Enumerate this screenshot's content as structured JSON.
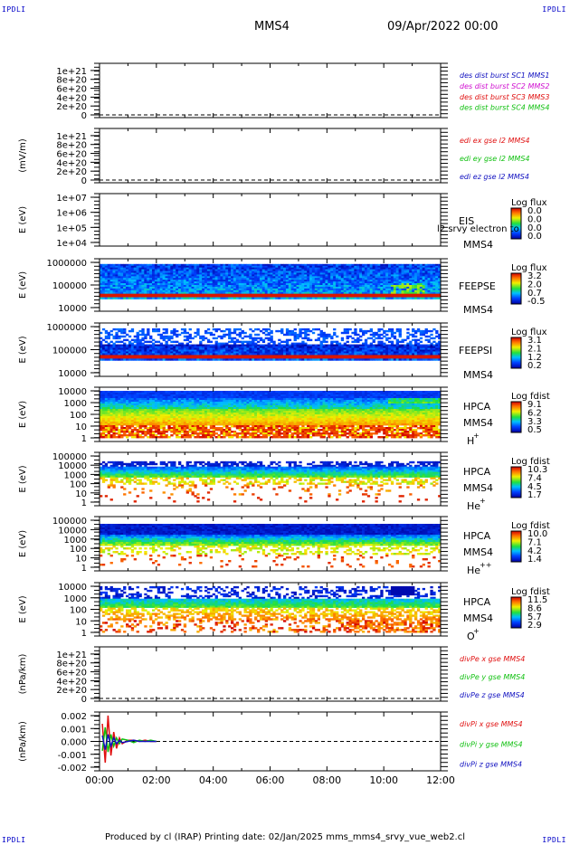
{
  "header": {
    "spacecraft": "MMS4",
    "date": "09/Apr/2022 00:00",
    "corner_label": "IPDLI"
  },
  "footer": {
    "text": "Produced by cl (IRAP)   Printing date: 02/Jan/2025   mms_mms4_srvy_vue_web2.cl"
  },
  "colors": {
    "red": "#e01010",
    "green": "#10c010",
    "blue": "#1010c0",
    "magenta": "#d010d0",
    "dashed": "#000000"
  },
  "time_axis": {
    "ticks": [
      "00:00",
      "02:00",
      "04:00",
      "06:00",
      "08:00",
      "10:00",
      "12:00"
    ],
    "range_hours": [
      0,
      12
    ]
  },
  "chart_data": [
    {
      "type": "line",
      "panel": "des-dist-burst",
      "ylabel": "",
      "ytick_labels": [
        "1e+21",
        "8e+20",
        "6e+20",
        "4e+20",
        "2e+20",
        "0"
      ],
      "ylim": [
        0,
        1.1e+21
      ],
      "legend": [
        {
          "text": "des dist burst SC1 MMS1",
          "color": "#1010c0"
        },
        {
          "text": "des dist burst SC2 MMS2",
          "color": "#d010d0"
        },
        {
          "text": "des dist burst SC3 MMS3",
          "color": "#e01010"
        },
        {
          "text": "des dist burst SC4 MMS4",
          "color": "#10c010"
        }
      ],
      "series": []
    },
    {
      "type": "line",
      "panel": "edi-e",
      "ylabel": "(mV/m)",
      "ytick_labels": [
        "1e+21",
        "8e+20",
        "6e+20",
        "4e+20",
        "2e+20",
        "0"
      ],
      "ylim": [
        0,
        1.1e+21
      ],
      "legend": [
        {
          "text": "edi ex gse l2 MMS4",
          "color": "#e01010"
        },
        {
          "text": "edi ey gse l2 MMS4",
          "color": "#10c010"
        },
        {
          "text": "edi ez gse l2 MMS4",
          "color": "#1010c0"
        }
      ],
      "series": []
    },
    {
      "type": "heatmap",
      "panel": "eis",
      "ylabel": "E (eV)",
      "ytick_labels": [
        "1e+07",
        "1e+06",
        "1e+05",
        "1e+04"
      ],
      "ylog": [
        4,
        7
      ],
      "labels": [
        "EIS",
        "MMS4"
      ],
      "overlay_text": "l2 srvy electron to",
      "colorbar_title": "Log flux",
      "colorbar_ticks": [
        "0.0",
        "0.0",
        "0.0",
        "0.0"
      ],
      "empty": true
    },
    {
      "type": "heatmap",
      "panel": "feepse",
      "ylabel": "E (eV)",
      "ytick_labels": [
        "1000000",
        "100000",
        "10000"
      ],
      "ylog": [
        4,
        6
      ],
      "labels": [
        "FEEPSE",
        "MMS4"
      ],
      "colorbar_title": "Log flux",
      "colorbar_ticks": [
        "3.2",
        "2.0",
        "0.7",
        "-0.5"
      ]
    },
    {
      "type": "heatmap",
      "panel": "feepsi",
      "ylabel": "E (eV)",
      "ytick_labels": [
        "1000000",
        "100000",
        "10000"
      ],
      "ylog": [
        4,
        6
      ],
      "labels": [
        "FEEPSI",
        "MMS4"
      ],
      "colorbar_title": "Log flux",
      "colorbar_ticks": [
        "3.1",
        "2.1",
        "1.2",
        "0.2"
      ]
    },
    {
      "type": "heatmap",
      "panel": "hpca-h",
      "ylabel": "E (eV)",
      "ytick_labels": [
        "10000",
        "1000",
        "100",
        "10",
        "1"
      ],
      "ylog": [
        0,
        4.3
      ],
      "labels": [
        "HPCA",
        "MMS4",
        "H",
        "+"
      ],
      "colorbar_title": "Log fdist",
      "colorbar_ticks": [
        "9.1",
        "6.2",
        "3.3",
        "0.5"
      ]
    },
    {
      "type": "heatmap",
      "panel": "hpca-he",
      "ylabel": "E (eV)",
      "ytick_labels": [
        "100000",
        "10000",
        "1000",
        "100",
        "10",
        "1"
      ],
      "ylog": [
        0,
        5
      ],
      "labels": [
        "HPCA",
        "MMS4",
        "He",
        "+"
      ],
      "colorbar_title": "Log fdist",
      "colorbar_ticks": [
        "10.3",
        "7.4",
        "4.5",
        "1.7"
      ]
    },
    {
      "type": "heatmap",
      "panel": "hpca-he2",
      "ylabel": "E (eV)",
      "ytick_labels": [
        "100000",
        "10000",
        "1000",
        "100",
        "10",
        "1"
      ],
      "ylog": [
        0,
        5
      ],
      "labels": [
        "HPCA",
        "MMS4",
        "He",
        "++"
      ],
      "colorbar_title": "Log fdist",
      "colorbar_ticks": [
        "10.0",
        "7.1",
        "4.2",
        "1.4"
      ]
    },
    {
      "type": "heatmap",
      "panel": "hpca-o",
      "ylabel": "E (eV)",
      "ytick_labels": [
        "10000",
        "1000",
        "100",
        "10",
        "1"
      ],
      "ylog": [
        0,
        4.3
      ],
      "labels": [
        "HPCA",
        "MMS4",
        "O",
        "+"
      ],
      "colorbar_title": "Log fdist",
      "colorbar_ticks": [
        "11.5",
        "8.6",
        "5.7",
        "2.9"
      ]
    },
    {
      "type": "line",
      "panel": "divpe",
      "ylabel": "(nPa/km)",
      "ytick_labels": [
        "1e+21",
        "8e+20",
        "6e+20",
        "4e+20",
        "2e+20",
        "0"
      ],
      "ylim": [
        0,
        1.1e+21
      ],
      "legend": [
        {
          "text": "divPe x gse MMS4",
          "color": "#e01010"
        },
        {
          "text": "divPe y gse MMS4",
          "color": "#10c010"
        },
        {
          "text": "divPe z gse MMS4",
          "color": "#1010c0"
        }
      ],
      "series": []
    },
    {
      "type": "line",
      "panel": "divpi",
      "ylabel": "(nPa/km)",
      "ytick_labels": [
        "0.002",
        "0.001",
        "0.000",
        "-0.001",
        "-0.002"
      ],
      "ylim": [
        -0.0025,
        0.0025
      ],
      "legend": [
        {
          "text": "divPi x gse MMS4",
          "color": "#e01010"
        },
        {
          "text": "divPi y gse MMS4",
          "color": "#10c010"
        },
        {
          "text": "divPi z gse MMS4",
          "color": "#1010c0"
        }
      ],
      "series": [
        {
          "name": "divPi x gse MMS4",
          "x": [
            0.1,
            0.2,
            0.3,
            0.4,
            0.5,
            0.6,
            0.7,
            0.8,
            1.0,
            1.2,
            1.4,
            1.6,
            1.8,
            2.0
          ],
          "values": [
            0.0015,
            -0.0018,
            0.0022,
            -0.0012,
            0.0008,
            -0.0006,
            0.0003,
            -0.0002,
            0.0001,
            0.0001,
            0.0,
            0.0001,
            0.0,
            0.0
          ]
        },
        {
          "name": "divPi y gse MMS4",
          "x": [
            0.1,
            0.2,
            0.3,
            0.4,
            0.5,
            0.6,
            0.7,
            0.8,
            1.0,
            1.2,
            1.4,
            1.6,
            1.8,
            2.0
          ],
          "values": [
            -0.0008,
            0.0012,
            -0.0009,
            0.0006,
            -0.0004,
            0.0003,
            -0.0002,
            0.0002,
            0.0001,
            -0.0001,
            0.0001,
            0.0,
            0.0001,
            0.0
          ]
        },
        {
          "name": "divPi z gse MMS4",
          "x": [
            0.1,
            0.2,
            0.3,
            0.4,
            0.5,
            0.6,
            0.7,
            0.8,
            1.0,
            1.2,
            1.4,
            1.6,
            1.8,
            2.0
          ],
          "values": [
            0.0005,
            -0.0007,
            0.0006,
            -0.0004,
            0.0003,
            -0.0002,
            0.0001,
            -0.0001,
            0.0,
            0.0001,
            0.0,
            0.0,
            0.0,
            0.0
          ]
        }
      ]
    }
  ]
}
